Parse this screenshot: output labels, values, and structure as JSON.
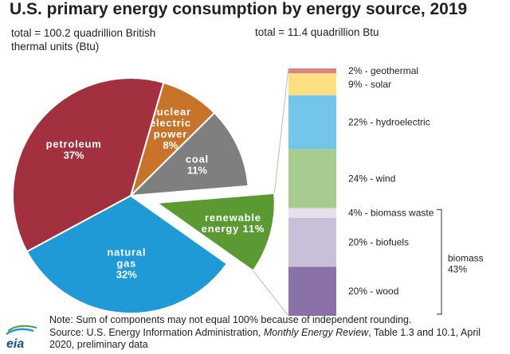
{
  "title": "U.S. primary energy consumption by energy source, 2019",
  "left_total": "total = 100.2 quadrillion British thermal units (Btu)",
  "right_total": "total = 11.4 quadrillion Btu",
  "note": {
    "line1": "Note: Sum of components may not equal 100% because of independent rounding.",
    "source_prefix": "Source: U.S. Energy Information Administration, ",
    "source_italic": "Monthly Energy Review",
    "source_suffix": ", Table 1.3 and 10.1, April 2020, preliminary data"
  },
  "logo_text": "eia",
  "biomass_group": {
    "label": "biomass",
    "percent": "43%"
  },
  "chart_data": [
    {
      "type": "pie",
      "title": "U.S. primary energy consumption by energy source, 2019",
      "total": "total = 100.2 quadrillion British thermal units (Btu)",
      "slices": [
        {
          "label": "nuclear electric power",
          "percent": "8%",
          "value": 8,
          "color": "#c8732a"
        },
        {
          "label": "coal",
          "percent": "11%",
          "value": 11,
          "color": "#7f7f7f"
        },
        {
          "label": "renewable energy",
          "percent": "11%",
          "value": 11,
          "color": "#5b9a32",
          "exploded": true
        },
        {
          "label": "natural gas",
          "percent": "32%",
          "value": 32,
          "color": "#1f9ad6"
        },
        {
          "label": "petroleum",
          "percent": "37%",
          "value": 37,
          "color": "#a3303f"
        }
      ]
    },
    {
      "type": "bar",
      "stacked": true,
      "total": "total = 11.4 quadrillion Btu",
      "segments": [
        {
          "label": "geothermal",
          "percent": "2%",
          "value": 2,
          "color": "#d98585"
        },
        {
          "label": "solar",
          "percent": "9%",
          "value": 9,
          "color": "#fde082"
        },
        {
          "label": "hydroelectric",
          "percent": "22%",
          "value": 22,
          "color": "#73c6ea"
        },
        {
          "label": "wind",
          "percent": "24%",
          "value": 24,
          "color": "#a8cc8f"
        },
        {
          "label": "biomass waste",
          "percent": "4%",
          "value": 4,
          "color": "#e3e1ea"
        },
        {
          "label": "biofuels",
          "percent": "20%",
          "value": 20,
          "color": "#c8bfd8"
        },
        {
          "label": "wood",
          "percent": "20%",
          "value": 20,
          "color": "#8a72a8"
        }
      ]
    }
  ]
}
